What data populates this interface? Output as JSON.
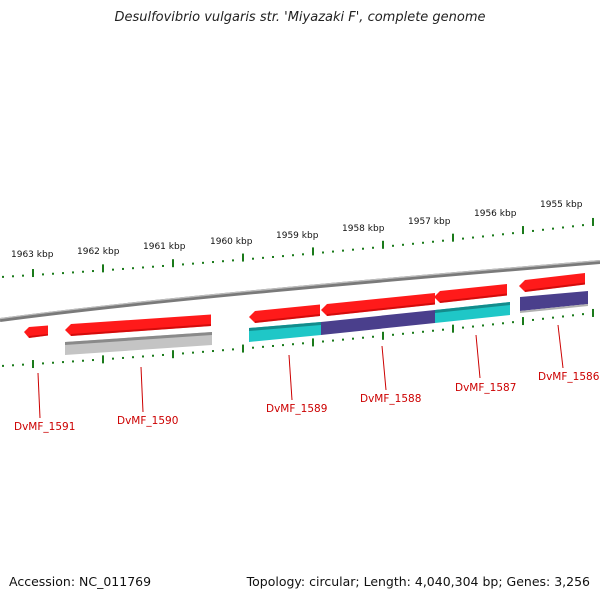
{
  "title": "Desulfovibrio vulgaris str. 'Miyazaki F', complete genome",
  "footer": {
    "accession": "Accession: NC_011769",
    "summary": "Topology: circular; Length: 4,040,304 bp; Genes: 3,256"
  },
  "scale": {
    "labels": [
      "1963 kbp",
      "1962 kbp",
      "1961 kbp",
      "1960 kbp",
      "1959 kbp",
      "1958 kbp",
      "1957 kbp",
      "1956 kbp",
      "1955 kbp"
    ]
  },
  "genes": [
    {
      "label": "DvMF_1591",
      "strand": "reverse",
      "color": "#ff0000",
      "lower_color": null
    },
    {
      "label": "DvMF_1590",
      "strand": "reverse",
      "color": "#ff0000",
      "lower_color": "#c0c0c0"
    },
    {
      "label": "DvMF_1589",
      "strand": "reverse",
      "color": "#ff0000",
      "lower_color": "#1fc7c7"
    },
    {
      "label": "DvMF_1588",
      "strand": "reverse",
      "color": "#ff0000",
      "lower_color": "#4a3f8c"
    },
    {
      "label": "DvMF_1587",
      "strand": "reverse",
      "color": "#ff0000",
      "lower_color": "#1fc7c7"
    },
    {
      "label": "DvMF_1586",
      "strand": "reverse",
      "color": "#ff0000",
      "lower_color": "#4a3f8c"
    }
  ],
  "colors": {
    "backbone": "#808080",
    "tick": "#1a7a1a",
    "gene_label": "#cc0000"
  }
}
